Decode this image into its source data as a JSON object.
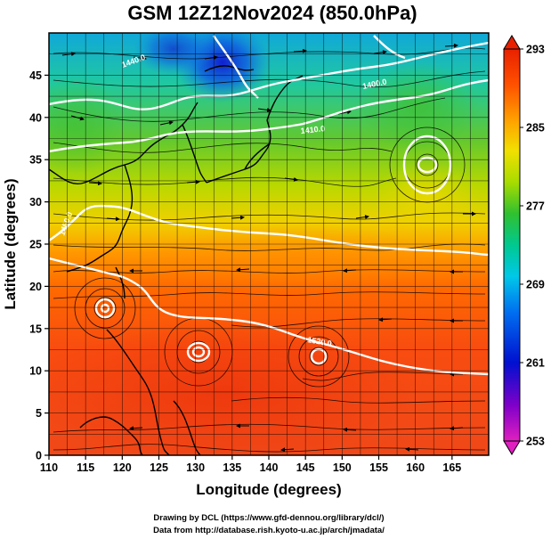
{
  "figure": {
    "title": "GSM 12Z12Nov2024 (850.0hPa)",
    "credits": [
      "Drawing by DCL (https://www.gfd-dennou.org/library/dcl/)",
      "Data from http://database.rish.kyoto-u.ac.jp/arch/jmadata/"
    ]
  },
  "map": {
    "xlabel": "Longitude (degrees)",
    "ylabel": "Latitude  (degrees)",
    "xlim": [
      110,
      170
    ],
    "ylim": [
      0,
      50
    ],
    "xticks": [
      110,
      115,
      120,
      125,
      130,
      135,
      140,
      145,
      150,
      155,
      160,
      165
    ],
    "yticks": [
      0,
      5,
      10,
      15,
      20,
      25,
      30,
      35,
      40,
      45
    ],
    "grid": true,
    "field": "temperature (shaded), geopotential height (white contours), wind (streamlines/arrows)",
    "colorbar": {
      "range": [
        253,
        293
      ],
      "ticks": [
        253,
        261,
        269,
        277,
        285,
        293
      ],
      "colors": [
        "#e020c0",
        "#7000c8",
        "#0018d0",
        "#0080f0",
        "#00d0e0",
        "#00c8a0",
        "#30c040",
        "#a0dc00",
        "#f0e000",
        "#ff9800",
        "#ff5000",
        "#e82000"
      ]
    },
    "contour_labels": [
      "1400.0",
      "1410.0",
      "1520.0",
      "1440.0",
      "1460.0"
    ],
    "vortex_centers": [
      {
        "lon": 117.5,
        "lat": 19.5
      },
      {
        "lon": 130.5,
        "lat": 14.0
      },
      {
        "lon": 146.5,
        "lat": 13.0
      },
      {
        "lon": 160.5,
        "lat": 37.0
      }
    ]
  }
}
